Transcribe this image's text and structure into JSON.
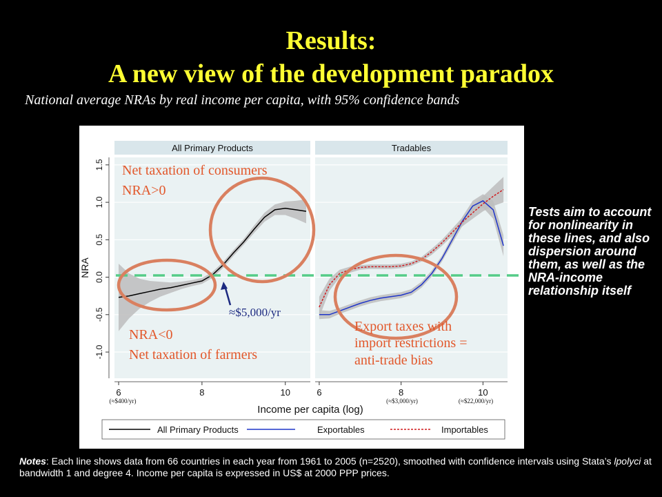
{
  "slide": {
    "title_line1": "Results:",
    "title_line2": "A new view of the development paradox",
    "subtitle": "National average NRAs by real income per capita, with 95% confidence bands",
    "side_note": "Tests aim to account for nonlinearity in these lines, and also dispersion around them, as well as the NRA-income relationship itself",
    "notes": {
      "label": "Notes",
      "text_a": ": Each line shows data from 66 countries in each year from 1961 to 2005 (n=2520), smoothed with confidence intervals using Stata’s ",
      "command": "lpolyci",
      "text_b": " at bandwidth 1 and degree 4.  Income per capita is expressed in US$ at 2000 PPP prices."
    }
  },
  "colors": {
    "background": "#000000",
    "title": "#FFFF33",
    "plot_panel": "#EAF2F3",
    "strip": "#D9E6EB",
    "band": "#BDBDBD",
    "line_all": "#000000",
    "line_exportables": "#1F35C8",
    "line_importables": "#D0181C",
    "dashed_zero": "#55CC88",
    "annotation_text": "#E2572A",
    "circle": "#D98060",
    "arrow": "#1C2A80"
  },
  "chart_data": {
    "type": "line",
    "ylabel": "NRA",
    "xlabel": "Income per capita (log)",
    "x_ticks": [
      6,
      8,
      10
    ],
    "x_tick_labels": [
      "6",
      "8",
      "10"
    ],
    "y_ticks": [
      -1.0,
      -0.5,
      0.0,
      0.5,
      1.0,
      1.5
    ],
    "y_tick_labels": [
      "-1.0",
      "-0.5",
      "0.0",
      "0.5",
      "1.0",
      "1.5"
    ],
    "xlim": [
      5.9,
      10.6
    ],
    "ylim": [
      -1.35,
      1.6
    ],
    "income_notes": [
      {
        "x": 6,
        "label": "(≈$400/yr)"
      },
      {
        "x": 8,
        "label": "(≈$3,000/yr)"
      },
      {
        "x": 10,
        "label": "(≈$22,000/yr)"
      }
    ],
    "panels": [
      {
        "title": "All Primary Products",
        "series": [
          {
            "name": "All Primary Products",
            "x": [
              6.0,
              6.25,
              6.5,
              6.75,
              7.0,
              7.25,
              7.5,
              7.75,
              8.0,
              8.25,
              8.5,
              8.75,
              9.0,
              9.25,
              9.5,
              9.75,
              10.0,
              10.25,
              10.5
            ],
            "y": [
              -0.27,
              -0.25,
              -0.22,
              -0.19,
              -0.16,
              -0.14,
              -0.11,
              -0.08,
              -0.05,
              0.03,
              0.16,
              0.32,
              0.47,
              0.64,
              0.8,
              0.9,
              0.92,
              0.9,
              0.88
            ],
            "band_halfwidth": [
              0.45,
              0.3,
              0.2,
              0.14,
              0.1,
              0.07,
              0.05,
              0.04,
              0.04,
              0.04,
              0.04,
              0.04,
              0.04,
              0.05,
              0.06,
              0.07,
              0.09,
              0.12,
              0.16
            ]
          }
        ],
        "annotations": {
          "consumers_line1": "Net taxation of consumers",
          "consumers_line2": "NRA>0",
          "farmers_line1": "NRA<0",
          "farmers_line2": "Net taxation of farmers",
          "threshold": "≈$5,000/yr"
        }
      },
      {
        "title": "Tradables",
        "series": [
          {
            "name": "Exportables",
            "x": [
              6.0,
              6.25,
              6.5,
              6.75,
              7.0,
              7.25,
              7.5,
              7.75,
              8.0,
              8.25,
              8.5,
              8.75,
              9.0,
              9.25,
              9.5,
              9.75,
              10.0,
              10.25,
              10.5
            ],
            "y": [
              -0.5,
              -0.5,
              -0.45,
              -0.4,
              -0.35,
              -0.31,
              -0.28,
              -0.26,
              -0.24,
              -0.2,
              -0.1,
              0.05,
              0.25,
              0.5,
              0.75,
              0.95,
              1.02,
              0.9,
              0.42
            ],
            "band_halfwidth": [
              0.06,
              0.05,
              0.04,
              0.04,
              0.04,
              0.04,
              0.04,
              0.04,
              0.04,
              0.04,
              0.04,
              0.04,
              0.04,
              0.05,
              0.06,
              0.07,
              0.09,
              0.12,
              0.14
            ]
          },
          {
            "name": "Importables",
            "x": [
              6.0,
              6.25,
              6.5,
              6.75,
              7.0,
              7.25,
              7.5,
              7.75,
              8.0,
              8.25,
              8.5,
              8.75,
              9.0,
              9.25,
              9.5,
              9.75,
              10.0,
              10.25,
              10.5
            ],
            "y": [
              -0.4,
              -0.1,
              0.05,
              0.1,
              0.13,
              0.14,
              0.14,
              0.14,
              0.15,
              0.18,
              0.24,
              0.34,
              0.46,
              0.6,
              0.74,
              0.86,
              0.98,
              1.08,
              1.17
            ],
            "band_halfwidth": [
              0.14,
              0.08,
              0.05,
              0.04,
              0.03,
              0.03,
              0.03,
              0.03,
              0.03,
              0.03,
              0.03,
              0.04,
              0.04,
              0.05,
              0.06,
              0.08,
              0.1,
              0.13,
              0.17
            ]
          }
        ],
        "annotations": {
          "export_line1": "Export taxes with",
          "export_line2": "import restrictions =",
          "export_line3": "anti-trade bias"
        }
      }
    ],
    "legend": [
      "All Primary Products",
      "Exportables",
      "Importables"
    ],
    "legend_position": "bottom"
  }
}
